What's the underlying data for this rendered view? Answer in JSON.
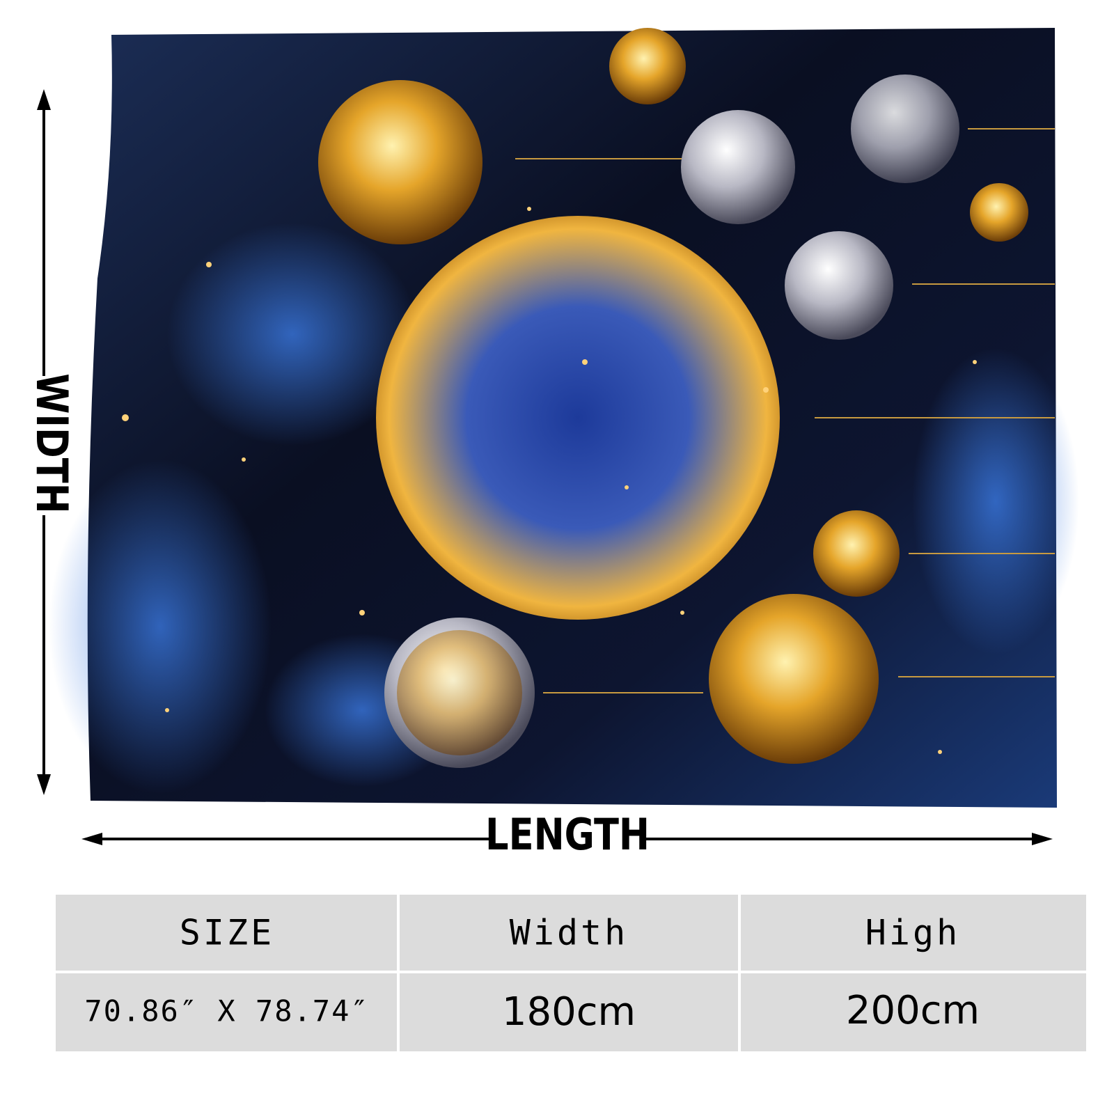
{
  "labels": {
    "width": "WIDTH",
    "length": "LENGTH"
  },
  "table": {
    "header": [
      "SIZE",
      "Width",
      "High"
    ],
    "rows": [
      [
        "70.86″ X 78.74″",
        "180cm",
        "200cm"
      ]
    ]
  }
}
